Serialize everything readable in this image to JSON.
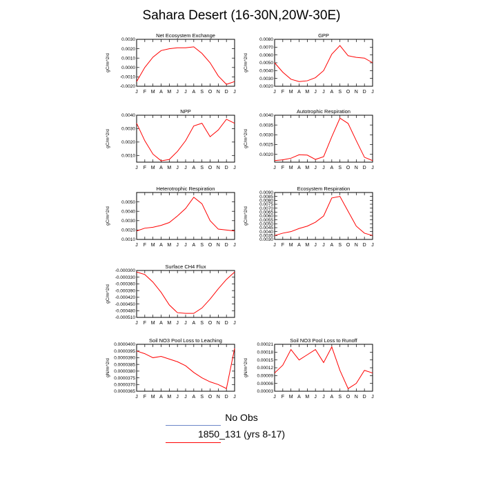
{
  "title": "Sahara Desert (16-30N,20W-30E)",
  "colors": {
    "model": "#ff0000",
    "obs": "#6a86c8",
    "axis": "#000000"
  },
  "months": [
    "J",
    "F",
    "M",
    "A",
    "M",
    "J",
    "J",
    "A",
    "S",
    "O",
    "N",
    "D",
    "J"
  ],
  "legend": {
    "obs_label": "No Obs",
    "model_label": "1850_131 (yrs 8-17)"
  },
  "chart_data": [
    {
      "type": "line",
      "title": "Net Ecosystem Exchange",
      "ylabel": "gC/m^2/d",
      "ylim": [
        -0.002,
        0.003
      ],
      "yticks": [
        -0.002,
        -0.001,
        0.0,
        0.001,
        0.002,
        0.003
      ],
      "ytick_labels": [
        "-0.0020",
        "-0.0010",
        "0.0000",
        "0.0010",
        "0.0020",
        "0.0030"
      ],
      "series": [
        {
          "values": [
            -0.0015,
            0.0,
            0.0011,
            0.0018,
            0.002,
            0.0021,
            0.0021,
            0.0022,
            0.0015,
            0.0005,
            -0.0009,
            -0.0018,
            -0.0015
          ]
        }
      ]
    },
    {
      "type": "line",
      "title": "GPP",
      "ylabel": "gC/m^2/d",
      "ylim": [
        0.002,
        0.008
      ],
      "yticks": [
        0.002,
        0.003,
        0.004,
        0.005,
        0.006,
        0.007,
        0.008
      ],
      "ytick_labels": [
        "0.0020",
        "0.0030",
        "0.0040",
        "0.0050",
        "0.0060",
        "0.0070",
        "0.0080"
      ],
      "series": [
        {
          "values": [
            0.005,
            0.0038,
            0.0029,
            0.0026,
            0.0027,
            0.0031,
            0.004,
            0.0061,
            0.0072,
            0.0059,
            0.0057,
            0.0056,
            0.005
          ]
        }
      ]
    },
    {
      "type": "line",
      "title": "NPP",
      "ylabel": "gC/m^2/d",
      "ylim": [
        0.0005,
        0.004
      ],
      "yticks": [
        0.001,
        0.002,
        0.003,
        0.004
      ],
      "ytick_labels": [
        "0.0010",
        "0.0020",
        "0.0030",
        "0.0040"
      ],
      "series": [
        {
          "values": [
            0.0034,
            0.0021,
            0.0011,
            0.0006,
            0.0007,
            0.0013,
            0.0021,
            0.0032,
            0.0034,
            0.0024,
            0.0029,
            0.0037,
            0.0034
          ]
        }
      ]
    },
    {
      "type": "line",
      "title": "Autotrophic Respiration",
      "ylabel": "gC/m^2/d",
      "ylim": [
        0.0016,
        0.004
      ],
      "yticks": [
        0.002,
        0.0025,
        0.003,
        0.0035,
        0.004
      ],
      "ytick_labels": [
        "0.0020",
        "0.0025",
        "0.0030",
        "0.0035",
        "0.0040"
      ],
      "series": [
        {
          "values": [
            0.00168,
            0.00172,
            0.0018,
            0.00198,
            0.00196,
            0.00174,
            0.00188,
            0.0029,
            0.00385,
            0.00358,
            0.0027,
            0.00185,
            0.00168
          ]
        }
      ]
    },
    {
      "type": "line",
      "title": "Heterotrophic Respiration",
      "ylabel": "gC/m^2/d",
      "ylim": [
        0.001,
        0.006
      ],
      "yticks": [
        0.001,
        0.002,
        0.003,
        0.004,
        0.005
      ],
      "ytick_labels": [
        "0.0010",
        "0.0020",
        "0.0030",
        "0.0040",
        "0.0050"
      ],
      "series": [
        {
          "values": [
            0.0019,
            0.0022,
            0.0023,
            0.0025,
            0.0028,
            0.0035,
            0.0043,
            0.0055,
            0.0048,
            0.003,
            0.0021,
            0.002,
            0.0019
          ]
        }
      ]
    },
    {
      "type": "line",
      "title": "Ecosystem Respiration",
      "ylabel": "gC/m^2/d",
      "ylim": [
        0.003,
        0.009
      ],
      "yticks": [
        0.003,
        0.0035,
        0.004,
        0.0045,
        0.005,
        0.0055,
        0.006,
        0.0065,
        0.007,
        0.0075,
        0.008,
        0.0085,
        0.009
      ],
      "ytick_labels": [
        "0.0030",
        "0.0035",
        "0.0040",
        "0.0045",
        "0.0050",
        "0.0055",
        "0.0060",
        "0.0065",
        "0.0070",
        "0.0075",
        "0.0080",
        "0.0085",
        "0.0090"
      ],
      "series": [
        {
          "values": [
            0.0035,
            0.0038,
            0.004,
            0.0044,
            0.0047,
            0.0052,
            0.006,
            0.0083,
            0.0085,
            0.0066,
            0.0047,
            0.0038,
            0.0035
          ]
        }
      ]
    },
    {
      "type": "line",
      "title": "Surface CH4 Flux",
      "ylabel": "gC/m^2/d",
      "ylim": [
        -0.00051,
        -0.0003
      ],
      "yticks": [
        -0.0003,
        -0.00033,
        -0.00036,
        -0.00039,
        -0.00042,
        -0.00045,
        -0.00048,
        -0.00051
      ],
      "ytick_labels": [
        "-0.000300",
        "-0.000330",
        "-0.000360",
        "-0.000390",
        "-0.000420",
        "-0.000450",
        "-0.000480",
        "-0.000510"
      ],
      "series": [
        {
          "values": [
            -0.000307,
            -0.000318,
            -0.000352,
            -0.000398,
            -0.000454,
            -0.000489,
            -0.000492,
            -0.000492,
            -0.000468,
            -0.000428,
            -0.000382,
            -0.00034,
            -0.000307
          ]
        }
      ]
    },
    {
      "type": "line",
      "title": "Soil NO3 Pool Loss to Leaching",
      "ylabel": "gN/m^2/d",
      "ylim": [
        3.65e-05,
        4e-05
      ],
      "yticks": [
        3.65e-05,
        3.7e-05,
        3.75e-05,
        3.8e-05,
        3.85e-05,
        3.9e-05,
        3.95e-05,
        4e-05
      ],
      "ytick_labels": [
        "0.0000365",
        "0.0000370",
        "0.0000375",
        "0.0000380",
        "0.0000385",
        "0.0000390",
        "0.0000395",
        "0.0000400"
      ],
      "series": [
        {
          "values": [
            3.95e-05,
            3.93e-05,
            3.9e-05,
            3.91e-05,
            3.89e-05,
            3.87e-05,
            3.84e-05,
            3.79e-05,
            3.75e-05,
            3.72e-05,
            3.7e-05,
            3.67e-05,
            3.97e-05
          ]
        }
      ]
    },
    {
      "type": "line",
      "title": "Soil NO3 Pool Loss to Runoff",
      "ylabel": "gN/m^2/d",
      "ylim": [
        3e-05,
        0.00021
      ],
      "yticks": [
        3e-05,
        6e-05,
        9e-05,
        0.00012,
        0.00015,
        0.00018,
        0.00021
      ],
      "ytick_labels": [
        "0.00003",
        "0.00006",
        "0.00009",
        "0.00012",
        "0.00015",
        "0.00018",
        "0.00021"
      ],
      "series": [
        {
          "values": [
            0.0001,
            0.00013,
            0.00019,
            0.00015,
            0.00017,
            0.00019,
            0.00014,
            0.0002,
            0.00011,
            4e-05,
            6e-05,
            0.00011,
            0.0001
          ]
        }
      ]
    }
  ]
}
